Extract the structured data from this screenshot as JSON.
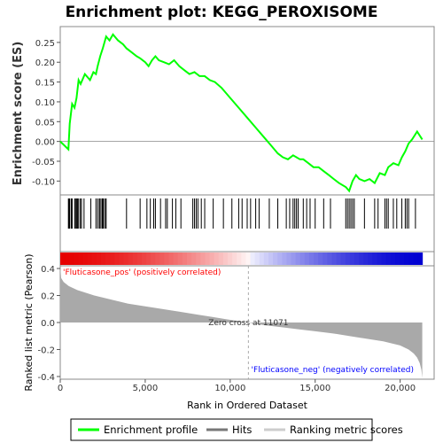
{
  "chart_data": {
    "type": "line",
    "title": "Enrichment plot: KEGG_PEROXISOME",
    "es_panel": {
      "ylabel": "Enrichment score (ES)",
      "ylim": [
        -0.135,
        0.29
      ],
      "yticks": [
        -0.1,
        -0.05,
        0.0,
        0.05,
        0.1,
        0.15,
        0.2,
        0.25
      ],
      "ytick_labels": [
        "-0.10",
        "-0.05",
        "0.00",
        "0.05",
        "0.10",
        "0.15",
        "0.20",
        "0.25"
      ],
      "series": [
        {
          "name": "Enrichment profile",
          "color": "#00ff00",
          "x": [
            0,
            480,
            560,
            700,
            840,
            960,
            1080,
            1200,
            1450,
            1750,
            1950,
            2100,
            2200,
            2350,
            2500,
            2700,
            2900,
            3100,
            3400,
            3700,
            3900,
            4200,
            4500,
            4700,
            5000,
            5200,
            5400,
            5600,
            5800,
            6100,
            6400,
            6700,
            7000,
            7300,
            7600,
            7900,
            8200,
            8500,
            8800,
            9100,
            9500,
            10000,
            10500,
            11000,
            11500,
            12000,
            12400,
            12800,
            13100,
            13400,
            13700,
            13900,
            14100,
            14300,
            14600,
            14900,
            15200,
            15500,
            15800,
            16100,
            16400,
            16800,
            17000,
            17200,
            17400,
            17600,
            17900,
            18200,
            18500,
            18800,
            19100,
            19300,
            19600,
            19900,
            20100,
            20300,
            20500,
            20700,
            21000,
            21300
          ],
          "y": [
            0.0,
            -0.02,
            0.045,
            0.095,
            0.085,
            0.11,
            0.155,
            0.145,
            0.17,
            0.155,
            0.175,
            0.17,
            0.19,
            0.215,
            0.235,
            0.265,
            0.255,
            0.27,
            0.255,
            0.245,
            0.235,
            0.225,
            0.215,
            0.21,
            0.2,
            0.19,
            0.205,
            0.215,
            0.205,
            0.2,
            0.195,
            0.205,
            0.19,
            0.18,
            0.17,
            0.175,
            0.165,
            0.165,
            0.155,
            0.15,
            0.135,
            0.11,
            0.085,
            0.06,
            0.035,
            0.01,
            -0.01,
            -0.03,
            -0.04,
            -0.045,
            -0.035,
            -0.04,
            -0.045,
            -0.045,
            -0.055,
            -0.065,
            -0.065,
            -0.075,
            -0.085,
            -0.095,
            -0.105,
            -0.115,
            -0.125,
            -0.1,
            -0.085,
            -0.095,
            -0.1,
            -0.095,
            -0.105,
            -0.08,
            -0.085,
            -0.065,
            -0.055,
            -0.06,
            -0.04,
            -0.025,
            -0.005,
            0.005,
            0.025,
            0.005
          ]
        }
      ]
    },
    "hits_panel": {
      "hit_positions": [
        480,
        520,
        560,
        650,
        700,
        850,
        900,
        960,
        1020,
        1080,
        1180,
        1250,
        1400,
        1800,
        2100,
        2200,
        2300,
        2350,
        2450,
        2500,
        2550,
        2650,
        2700,
        3900,
        4700,
        5100,
        5300,
        5500,
        5600,
        5900,
        6200,
        6300,
        6600,
        6800,
        7100,
        7800,
        7900,
        8000,
        8100,
        8300,
        8500,
        9000,
        9600,
        10100,
        10500,
        10700,
        11000,
        11200,
        11500,
        11700,
        12300,
        12800,
        13300,
        13500,
        13700,
        13800,
        13900,
        14000,
        14300,
        14500,
        14700,
        15000,
        15500,
        15900,
        16800,
        16900,
        17000,
        17100,
        17200,
        17300,
        17900,
        18500,
        18700,
        19100,
        19200,
        19300,
        19600,
        19800,
        20100,
        20300,
        20400,
        20500,
        20900
      ]
    },
    "rank_panel": {
      "ylabel": "Ranked list metric (Pearson)",
      "ylim": [
        -0.42,
        0.42
      ],
      "yticks": [
        -0.4,
        -0.2,
        0.0,
        0.2,
        0.4
      ],
      "ytick_labels": [
        "-0.4",
        "-0.2",
        "0.0",
        "0.2",
        "0.4"
      ],
      "xlabel": "Rank in Ordered Dataset",
      "xlim": [
        0,
        22000
      ],
      "xticks": [
        0,
        5000,
        10000,
        15000,
        20000
      ],
      "xtick_labels": [
        "0",
        "5,000",
        "10,000",
        "15,000",
        "20,000"
      ],
      "total_genes": 21300,
      "metric_curve": {
        "x": [
          0,
          50,
          200,
          500,
          1000,
          2000,
          3000,
          4000,
          5000,
          6000,
          7000,
          8000,
          9000,
          10000,
          11071,
          12000,
          13000,
          14000,
          15000,
          16000,
          17000,
          18000,
          19000,
          20000,
          20500,
          20800,
          21000,
          21150,
          21250,
          21300
        ],
        "y": [
          0.42,
          0.33,
          0.3,
          0.27,
          0.24,
          0.2,
          0.17,
          0.14,
          0.12,
          0.1,
          0.08,
          0.06,
          0.04,
          0.02,
          0.0,
          -0.02,
          -0.035,
          -0.05,
          -0.065,
          -0.08,
          -0.1,
          -0.12,
          -0.14,
          -0.17,
          -0.2,
          -0.23,
          -0.26,
          -0.3,
          -0.35,
          -0.41
        ]
      },
      "zero_cross": 11071,
      "zero_cross_label": "Zero cross at 11071",
      "pos_label": "'Fluticasone_pos' (positively correlated)",
      "neg_label": "'Fluticasone_neg' (negatively correlated)",
      "pos_color": "#ff0000",
      "neg_color": "#0000ff"
    },
    "legend": {
      "placement": "bottom",
      "entries": [
        {
          "label": "Enrichment profile",
          "color": "#00ff00"
        },
        {
          "label": "Hits",
          "color": "#777777"
        },
        {
          "label": "Ranking metric scores",
          "color": "#cccccc"
        }
      ]
    }
  }
}
